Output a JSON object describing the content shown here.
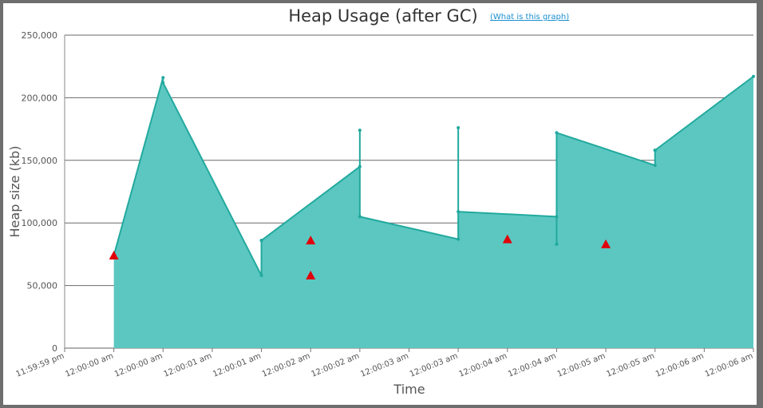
{
  "chart_data": {
    "type": "area",
    "title": "Heap Usage (after GC)",
    "help_link": "(What is this graph)",
    "xlabel": "Time",
    "ylabel": "Heap size (kb)",
    "ylim": [
      0,
      250000
    ],
    "y_ticks": [
      "250,000",
      "200,000",
      "150,000",
      "100,000",
      "50,000",
      "0"
    ],
    "x_tick_labels": [
      "11:59:59 pm",
      "12:00:00 am",
      "12:00:00 am",
      "12:00:01 am",
      "12:00:01 am",
      "12:00:02 am",
      "12:00:02 am",
      "12:00:03 am",
      "12:00:03 am",
      "12:00:04 am",
      "12:00:04 am",
      "12:00:05 am",
      "12:00:05 am",
      "12:00:06 am",
      "12:00:06 am"
    ],
    "grid": true,
    "colors": {
      "fill": "#5cc7c1",
      "line": "#22a99e",
      "marker": "#e0000a"
    },
    "series": [
      {
        "x": [
          1.0,
          2.0,
          2.0,
          4.0,
          4.0,
          4.0,
          6.0,
          6.0,
          6.0,
          6.0,
          8.0,
          8.0,
          8.0,
          10.0,
          10.0,
          10.0,
          10.0,
          12.0,
          12.0,
          12.0,
          12.0,
          14.0
        ],
        "y": [
          74000,
          216000,
          212000,
          58000,
          86000,
          86000,
          145000,
          174000,
          105000,
          105000,
          87000,
          176000,
          109000,
          105000,
          83000,
          83000,
          172000,
          146000,
          158000,
          158000,
          158000,
          217000
        ]
      }
    ],
    "markers": [
      {
        "x": 1.0,
        "y": 74000
      },
      {
        "x": 5.0,
        "y": 86000
      },
      {
        "x": 5.0,
        "y": 58000
      },
      {
        "x": 9.0,
        "y": 87000
      },
      {
        "x": 11.0,
        "y": 83000
      }
    ]
  }
}
